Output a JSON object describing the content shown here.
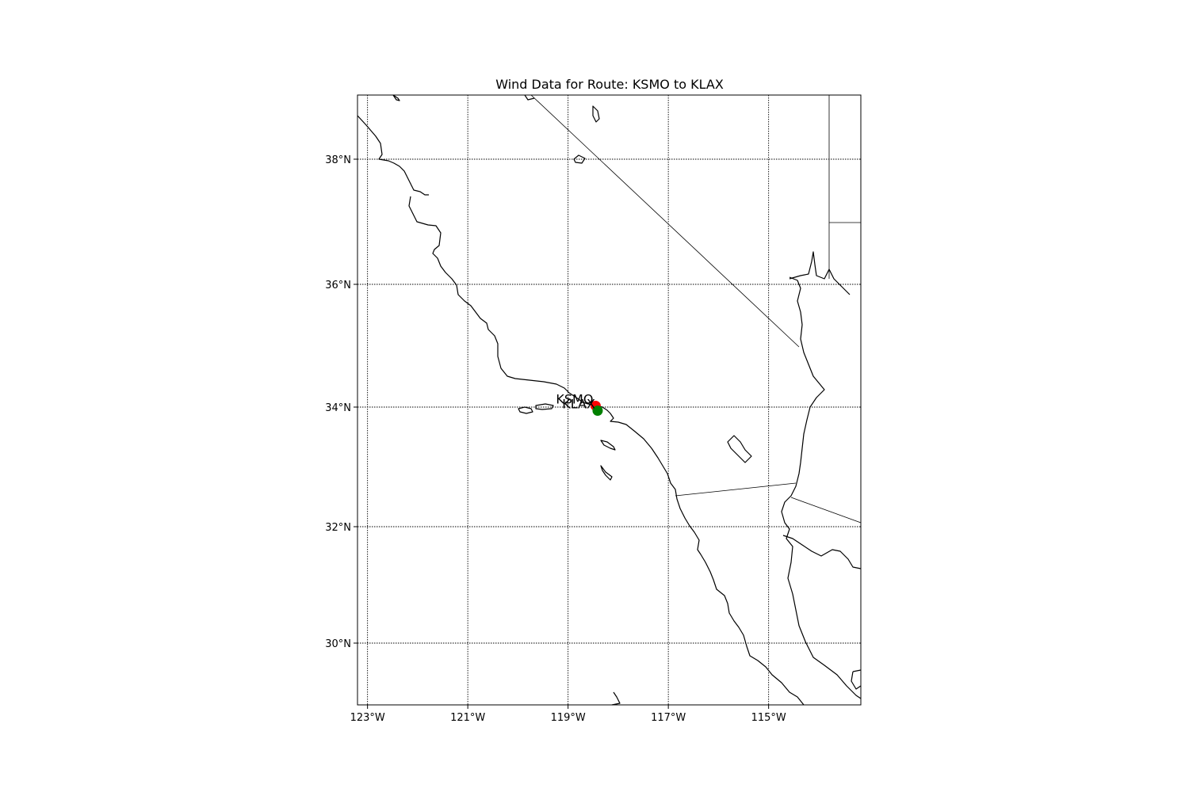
{
  "map": {
    "title": "Wind Data for Route: KSMO to KLAX",
    "lon_range": [
      -123.2,
      -118.2
    ],
    "lat_range": [
      29.0,
      39.0
    ],
    "meridians": [
      -123,
      -121,
      -119,
      -117,
      -115
    ],
    "parallels": [
      30,
      32,
      34,
      36,
      38
    ],
    "x_tick_labels": [
      "123°W",
      "121°W",
      "119°W",
      "117°W",
      "115°W"
    ],
    "y_tick_labels": [
      "30°N",
      "32°N",
      "34°N",
      "36°N",
      "38°N"
    ],
    "grid": true,
    "colors": {
      "origin": "#ff0000",
      "destination": "#008000",
      "coastline": "#000000"
    },
    "stations": [
      {
        "id": "KSMO",
        "label": "KSMO",
        "lon": -118.45,
        "lat": 34.02,
        "color": "#ff0000"
      },
      {
        "id": "KLAX",
        "label": "KLAX",
        "lon": -118.41,
        "lat": 33.94,
        "color": "#008000"
      }
    ]
  }
}
